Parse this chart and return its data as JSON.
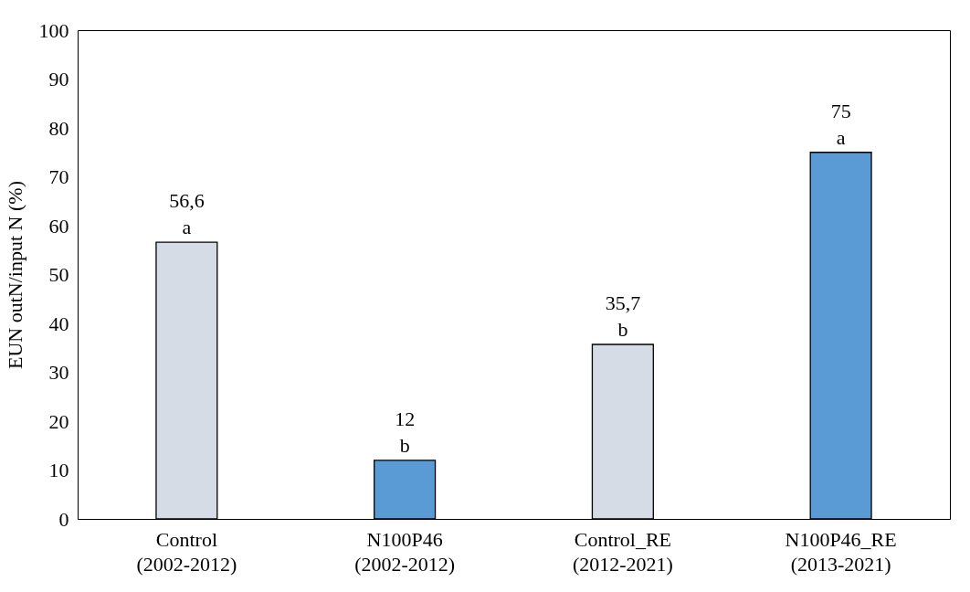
{
  "chart_data": {
    "type": "bar",
    "ylabel": "EUN  outN/input N (%)",
    "categories": [
      "Control (2002-2012)",
      "N100P46 (2002-2012)",
      "Control_RE (2012-2021)",
      "N100P46_RE (2013-2021)"
    ],
    "values": [
      56.6,
      12,
      35.7,
      75
    ],
    "colors": [
      "#d6dce5",
      "#5b9bd5",
      "#d6dce5",
      "#5b9bd5"
    ],
    "value_labels": [
      "56,6",
      "12",
      "35,7",
      "75"
    ],
    "annotations": [
      {
        "text": "a",
        "x": "Control (2002-2012)",
        "y": 56.6
      },
      {
        "text": "b",
        "x": "N100P46 (2002-2012)",
        "y": 12
      },
      {
        "text": "b",
        "x": "Control_RE (2012-2021)",
        "y": 35.7
      },
      {
        "text": "a",
        "x": "N100P46_RE (2013-2021)",
        "y": 75
      }
    ],
    "ylim": [
      0,
      100
    ],
    "yticks": [
      0,
      10,
      20,
      30,
      40,
      50,
      60,
      70,
      80,
      90,
      100
    ],
    "grid": false
  }
}
